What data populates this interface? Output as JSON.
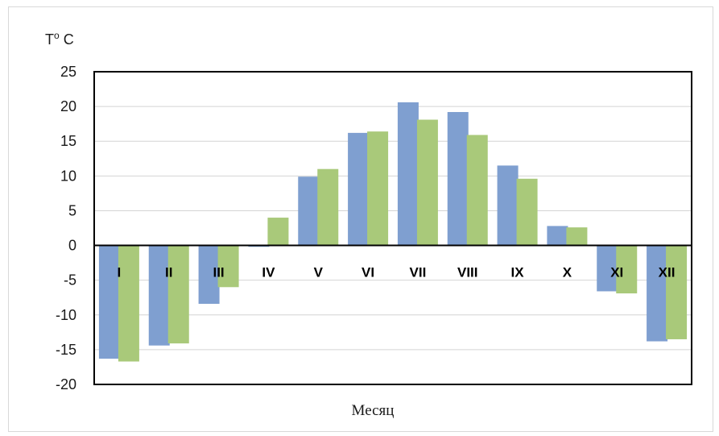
{
  "chart_data": {
    "type": "bar",
    "title": "",
    "ylabel": "To C",
    "xlabel": "Месяц",
    "ylim": [
      -20,
      25
    ],
    "yticks": [
      "25",
      "20",
      "15",
      "10",
      "5",
      "0",
      "-5",
      "-10",
      "-15",
      "-20"
    ],
    "categories": [
      "I",
      "II",
      "III",
      "IV",
      "V",
      "VI",
      "VII",
      "VIII",
      "IX",
      "X",
      "XI",
      "XII"
    ],
    "series": [
      {
        "color": "#7f9fd0",
        "values": [
          -16.3,
          -14.4,
          -8.4,
          -0.2,
          9.9,
          16.2,
          20.6,
          19.2,
          11.5,
          2.8,
          -6.6,
          -13.8
        ]
      },
      {
        "color": "#a9c97a",
        "values": [
          -16.7,
          -14.1,
          -6.0,
          4.0,
          11.0,
          16.4,
          18.1,
          15.9,
          9.6,
          2.6,
          -6.9,
          -13.5
        ]
      }
    ],
    "grid": true,
    "legend": "none"
  }
}
